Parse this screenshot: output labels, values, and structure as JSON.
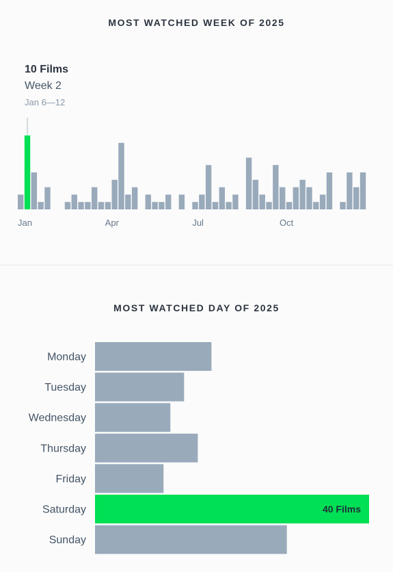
{
  "week_section": {
    "title": "MOST WATCHED WEEK OF 2025",
    "highlight": {
      "films": "10 Films",
      "week": "Week 2",
      "range": "Jan 6—12"
    }
  },
  "day_section": {
    "title": "MOST WATCHED DAY OF 2025",
    "highlight_label": "40 Films"
  },
  "colors": {
    "bar": "#99aabb",
    "highlight": "#00e054",
    "text": "#445566",
    "axis_text": "#667788",
    "cursor": "#d8dde2"
  },
  "chart_data": [
    {
      "type": "bar",
      "title": "MOST WATCHED WEEK OF 2025",
      "categories": [
        "1",
        "2",
        "3",
        "4",
        "5",
        "6",
        "7",
        "8",
        "9",
        "10",
        "11",
        "12",
        "13",
        "14",
        "15",
        "16",
        "17",
        "18",
        "19",
        "20",
        "21",
        "22",
        "23",
        "24",
        "25",
        "26",
        "27",
        "28",
        "29",
        "30",
        "31",
        "32",
        "33",
        "34",
        "35",
        "36",
        "37",
        "38",
        "39",
        "40",
        "41",
        "42",
        "43",
        "44",
        "45",
        "46",
        "47",
        "48",
        "49",
        "50",
        "51",
        "52"
      ],
      "values": [
        2,
        10,
        5,
        1,
        3,
        0,
        0,
        1,
        2,
        1,
        1,
        3,
        1,
        1,
        4,
        9,
        2,
        3,
        0,
        2,
        1,
        1,
        2,
        0,
        2,
        0,
        1,
        2,
        6,
        1,
        3,
        1,
        2,
        0,
        7,
        4,
        2,
        1,
        6,
        3,
        1,
        3,
        4,
        3,
        1,
        2,
        5,
        0,
        1,
        5,
        3,
        5
      ],
      "highlight_index": 1,
      "x_tick_labels": [
        {
          "label": "Jan",
          "index": 0
        },
        {
          "label": "Apr",
          "index": 13
        },
        {
          "label": "Jul",
          "index": 26
        },
        {
          "label": "Oct",
          "index": 39
        }
      ],
      "ylim": [
        0,
        10
      ],
      "grid": false
    },
    {
      "type": "bar",
      "orientation": "horizontal",
      "title": "MOST WATCHED DAY OF 2025",
      "categories": [
        "Monday",
        "Tuesday",
        "Wednesday",
        "Thursday",
        "Friday",
        "Saturday",
        "Sunday"
      ],
      "values": [
        17,
        13,
        11,
        15,
        10,
        40,
        28
      ],
      "highlight_index": 5,
      "highlight_label": "40 Films",
      "xlim": [
        0,
        40
      ],
      "grid": false
    }
  ]
}
